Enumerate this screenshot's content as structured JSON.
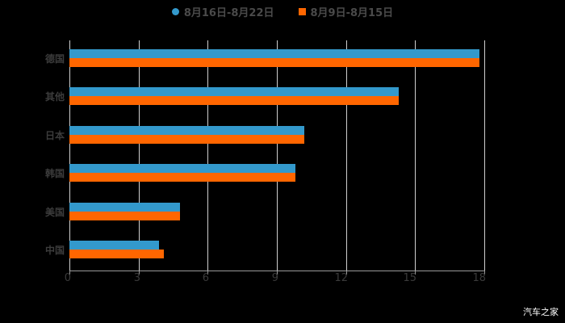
{
  "chart_data": {
    "type": "bar",
    "orientation": "horizontal",
    "title": "",
    "xlabel": "",
    "ylabel": "",
    "categories": [
      "德国",
      "其他",
      "日本",
      "韩国",
      "美国",
      "中国"
    ],
    "series": [
      {
        "name": "8月16日-8月22日",
        "color": "#3399cc",
        "values": [
          17.8,
          14.3,
          10.2,
          9.8,
          4.8,
          3.9
        ]
      },
      {
        "name": "8月9日-8月15日",
        "color": "#ff6600",
        "values": [
          17.8,
          14.3,
          10.2,
          9.8,
          4.8,
          4.1
        ]
      }
    ],
    "xlim": [
      0,
      18
    ],
    "xticks": [
      "0",
      "3",
      "6",
      "9",
      "12",
      "15",
      "18"
    ],
    "grid": true,
    "legend_position": "top"
  },
  "legend": {
    "series1": "8月16日-8月22日",
    "series2": "8月9日-8月15日"
  },
  "watermark": "汽车之家"
}
